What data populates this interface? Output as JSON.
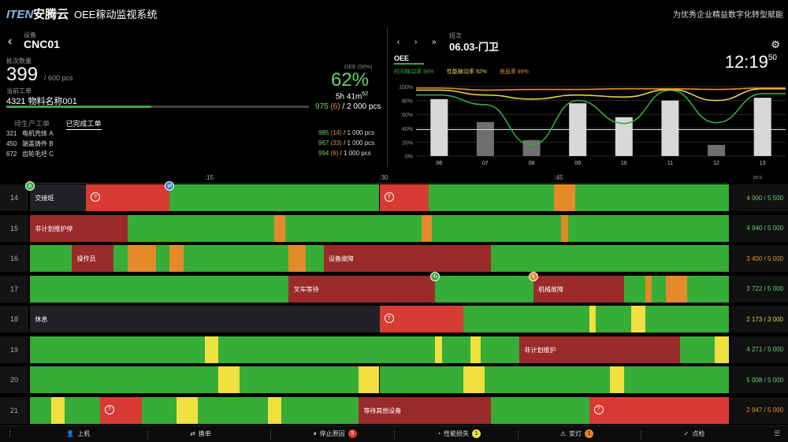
{
  "header": {
    "logo_latin": "ITEN",
    "logo_cn": "安腾云",
    "app_title": "OEE稼动监视系统",
    "slogan": "为优秀企业精益数字化转型赋能"
  },
  "machine": {
    "device_label": "设备",
    "name": "CNC01",
    "batch_label": "批次数量",
    "count": "399",
    "count_of": "/ 600 pcs",
    "order_label": "当前工单",
    "order": "4321 物料名称001",
    "oee_label": "OEE (56%)",
    "oee_pct": "62%",
    "remaining": "5h 41m",
    "remaining_sup": "52",
    "progress": 0.48,
    "total_good": "975",
    "total_bad": "(6)",
    "total_of": "/ 2 000 pcs",
    "tab_waiting": "待生产工单",
    "tab_done": "已完成工单",
    "orders": [
      {
        "id": "321",
        "name": "电机壳体 A",
        "good": "985",
        "bad": "(14)",
        "of": "/ 1 000 pcs"
      },
      {
        "id": "450",
        "name": "端盖铸件 B",
        "good": "967",
        "bad": "(33)",
        "of": "/ 1 000 pcs"
      },
      {
        "id": "672",
        "name": "齿轮毛坯 C",
        "good": "994",
        "bad": "(6)",
        "of": "/ 1 000 pcs"
      }
    ]
  },
  "shift": {
    "prev_icon": "chevron-left-icon",
    "next_icon": "chevron-right-icon",
    "last_icon": "chevron-double-right-icon",
    "shift_label": "班次",
    "shift_name": "06.03-门卫",
    "clock": "12:19",
    "clock_sec": "50",
    "oee_tab": "OEE",
    "kpi_avail": "时间稼动率 98%",
    "kpi_perf": "性能稼动率 92%",
    "kpi_quality": "良品率 99%"
  },
  "chart_data": {
    "type": "bar",
    "categories": [
      "06",
      "07",
      "08",
      "09",
      "10",
      "11",
      "12",
      "13"
    ],
    "ylim": [
      0,
      100
    ],
    "yticks": [
      "100%",
      "80%",
      "60%",
      "40%",
      "20%",
      "0%"
    ],
    "bars": [
      82,
      49,
      23,
      76,
      56,
      80,
      16,
      84
    ],
    "bar_colors": [
      "#d8d8d8",
      "#6f6f6f",
      "#6f6f6f",
      "#d8d8d8",
      "#d8d8d8",
      "#d8d8d8",
      "#6f6f6f",
      "#d8d8d8"
    ],
    "series": [
      {
        "color": "#3aa844",
        "values": [
          88,
          74,
          16,
          80,
          47,
          95,
          48,
          90
        ]
      },
      {
        "color": "#e5d44a",
        "values": [
          95,
          88,
          82,
          88,
          85,
          96,
          80,
          97
        ]
      },
      {
        "color": "#e39230",
        "values": [
          98,
          95,
          96,
          96,
          97,
          97,
          96,
          98
        ]
      }
    ],
    "reference_line": 38
  },
  "timeline": {
    "ticks": [
      ":15",
      ":30",
      ":45"
    ],
    "pcs_header": "pcs",
    "colors": {
      "green": "#36ad36",
      "red": "#d83a34",
      "darkred": "#9b2a2a",
      "orange": "#e48a2a",
      "yellow": "#f0e040",
      "dark": "#222226"
    },
    "rows": [
      {
        "label": "14",
        "value": "4 000 / 5 500",
        "cls": "g",
        "segs": [
          [
            "dark",
            0,
            8
          ],
          [
            "red",
            8,
            20
          ],
          [
            "green",
            20,
            50
          ],
          [
            "red",
            50,
            57
          ],
          [
            "green",
            57,
            75
          ],
          [
            "orange",
            75,
            78
          ],
          [
            "green",
            78,
            100
          ]
        ],
        "labels": [
          {
            "t": "交接班",
            "x": 0.5
          }
        ]
      },
      {
        "label": "15",
        "value": "4 940 / 5 000",
        "cls": "g",
        "segs": [
          [
            "darkred",
            0,
            14
          ],
          [
            "green",
            14,
            35
          ],
          [
            "orange",
            35,
            36.5
          ],
          [
            "green",
            36.5,
            56
          ],
          [
            "orange",
            56,
            57.5
          ],
          [
            "green",
            57.5,
            76
          ],
          [
            "orange",
            76,
            77
          ],
          [
            "green",
            77,
            100
          ]
        ],
        "labels": [
          {
            "t": "非计划维护停",
            "x": 0.5
          }
        ]
      },
      {
        "label": "16",
        "value": "3 400 / 5 000",
        "cls": "o",
        "segs": [
          [
            "green",
            0,
            6
          ],
          [
            "darkred",
            6,
            12
          ],
          [
            "green",
            12,
            14
          ],
          [
            "orange",
            14,
            18
          ],
          [
            "green",
            18,
            20
          ],
          [
            "orange",
            20,
            22
          ],
          [
            "green",
            22,
            37
          ],
          [
            "orange",
            37,
            39.5
          ],
          [
            "green",
            39.5,
            42
          ],
          [
            "darkred",
            42,
            66
          ],
          [
            "green",
            66,
            100
          ]
        ],
        "labels": [
          {
            "t": "操作员",
            "x": 6.5
          },
          {
            "t": "设备故障",
            "x": 42.5
          }
        ]
      },
      {
        "label": "17",
        "value": "3 722 / 5 000",
        "cls": "g",
        "segs": [
          [
            "green",
            0,
            37
          ],
          [
            "darkred",
            37,
            58
          ],
          [
            "green",
            58,
            72
          ],
          [
            "darkred",
            72,
            85
          ],
          [
            "green",
            85,
            88
          ],
          [
            "orange",
            88,
            89
          ],
          [
            "green",
            89,
            91
          ],
          [
            "orange",
            91,
            94
          ],
          [
            "green",
            94,
            100
          ]
        ],
        "labels": [
          {
            "t": "叉车等待",
            "x": 37.5
          },
          {
            "t": "机械故障",
            "x": 72.5
          }
        ]
      },
      {
        "label": "18",
        "value": "2 173 / 3 000",
        "cls": "y",
        "segs": [
          [
            "dark",
            0,
            50
          ],
          [
            "red",
            50,
            62
          ],
          [
            "green",
            62,
            80
          ],
          [
            "yellow",
            80,
            81
          ],
          [
            "green",
            81,
            86
          ],
          [
            "yellow",
            86,
            88
          ],
          [
            "green",
            88,
            100
          ]
        ],
        "labels": [
          {
            "t": "休息",
            "x": 0.5
          }
        ]
      },
      {
        "label": "19",
        "value": "4 271 / 5 000",
        "cls": "g",
        "segs": [
          [
            "green",
            0,
            25
          ],
          [
            "yellow",
            25,
            27
          ],
          [
            "green",
            27,
            58
          ],
          [
            "yellow",
            58,
            59
          ],
          [
            "green",
            59,
            63
          ],
          [
            "yellow",
            63,
            64.5
          ],
          [
            "green",
            64.5,
            70
          ],
          [
            "darkred",
            70,
            93
          ],
          [
            "green",
            93,
            98
          ],
          [
            "yellow",
            98,
            100
          ]
        ],
        "labels": [
          {
            "t": "非计划维护",
            "x": 70.5
          }
        ]
      },
      {
        "label": "20",
        "value": "5 008 / 5 000",
        "cls": "g",
        "segs": [
          [
            "green",
            0,
            27
          ],
          [
            "yellow",
            27,
            30
          ],
          [
            "green",
            30,
            47
          ],
          [
            "yellow",
            47,
            50
          ],
          [
            "green",
            50,
            62
          ],
          [
            "yellow",
            62,
            65
          ],
          [
            "green",
            65,
            83
          ],
          [
            "yellow",
            83,
            85
          ],
          [
            "green",
            85,
            100
          ]
        ],
        "labels": []
      },
      {
        "label": "21",
        "value": "2 947 / 5 000",
        "cls": "o",
        "segs": [
          [
            "green",
            0,
            3
          ],
          [
            "yellow",
            3,
            5
          ],
          [
            "green",
            5,
            10
          ],
          [
            "red",
            10,
            16
          ],
          [
            "green",
            16,
            21
          ],
          [
            "yellow",
            21,
            24
          ],
          [
            "green",
            24,
            34
          ],
          [
            "yellow",
            34,
            36
          ],
          [
            "green",
            36,
            47
          ],
          [
            "darkred",
            47,
            66
          ],
          [
            "green",
            66,
            80
          ],
          [
            "red",
            80,
            100
          ]
        ],
        "labels": [
          {
            "t": "等待其他设备",
            "x": 47.5
          }
        ]
      }
    ]
  },
  "bottom": {
    "items": [
      {
        "icon": "user-icon",
        "glyph": "👤",
        "label": "上机"
      },
      {
        "icon": "switch-icon",
        "glyph": "⇄",
        "label": "换单"
      },
      {
        "icon": "pause-icon",
        "glyph": "⏸",
        "label": "停止原因",
        "badge": "5",
        "badge_color": "#d83a34"
      },
      {
        "icon": "gauge-icon",
        "glyph": "◔",
        "label": "性能损失",
        "badge": "1",
        "badge_color": "#f0e040"
      },
      {
        "icon": "alarm-icon",
        "glyph": "⚠",
        "label": "安灯",
        "badge": "1",
        "badge_color": "#e48a2a"
      },
      {
        "icon": "check-icon",
        "glyph": "✓",
        "label": "点检"
      }
    ]
  }
}
